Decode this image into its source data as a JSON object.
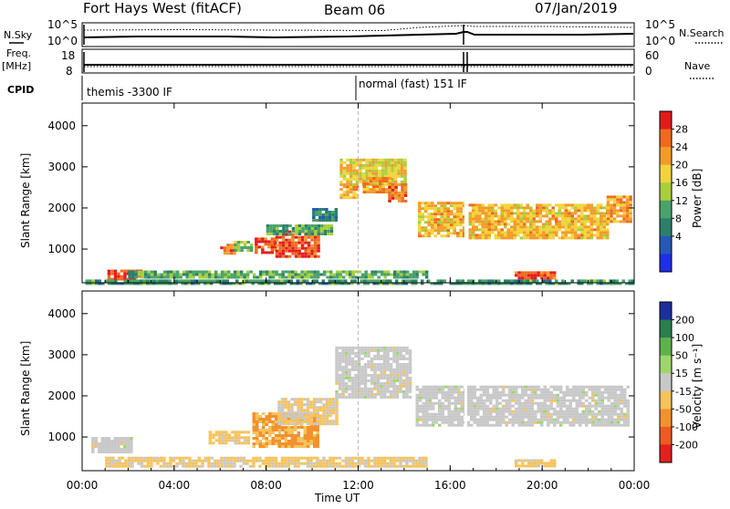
{
  "header": {
    "station": "Fort Hays West (fitACF)",
    "beam": "Beam 06",
    "date": "07/Jan/2019"
  },
  "left_labels": {
    "nsky": "N.Sky",
    "freq": "Freq.",
    "mhz": "[MHz]",
    "cpid": "CPID"
  },
  "right_labels": {
    "nsearch": "N.Search",
    "nave": "Nave"
  },
  "top_panels": {
    "noise_ticks": {
      "left_top": "10^5",
      "left_bottom": "10^0",
      "right_top": "10^5",
      "right_bottom": "10^0"
    },
    "freq_ticks": {
      "top": "18",
      "bottom": "8"
    },
    "nave_ticks": {
      "top": "60",
      "bottom": "0"
    },
    "cpid_labels": [
      "themis -3300 IF",
      "normal (fast) 151 IF"
    ]
  },
  "axes": {
    "xlabel": "Time UT",
    "ylabel": "Slant Range [km]",
    "xticks": [
      "00:00",
      "04:00",
      "08:00",
      "12:00",
      "16:00",
      "20:00",
      "00:00"
    ],
    "yticks": [
      "1000",
      "2000",
      "3000",
      "4000"
    ]
  },
  "colorbars": {
    "power": {
      "label": "Power [dB]",
      "ticks": [
        "4",
        "8",
        "12",
        "16",
        "20",
        "24",
        "28"
      ],
      "colors": [
        "#1f2ee8",
        "#2459b8",
        "#2c7f6a",
        "#48a36a",
        "#a7cf3d",
        "#f2d43a",
        "#f39b2a",
        "#ef6a1f",
        "#e31a1c"
      ]
    },
    "velocity": {
      "label": "Velocity [m s⁻¹]",
      "ticks": [
        "200",
        "100",
        "50",
        "15",
        "-15",
        "-50",
        "-100",
        "-200"
      ],
      "colors": [
        "#1d2f9c",
        "#2a7f4f",
        "#5fb24a",
        "#9fd66b",
        "#c8c8c8",
        "#f6c35c",
        "#f2912e",
        "#ee5a23",
        "#e3201c"
      ]
    }
  },
  "chart_data": {
    "type": "heatmap",
    "title": "Fort Hays West (fitACF)",
    "xlabel": "Time UT",
    "ylabel": "Slant Range [km]",
    "xlim": [
      0,
      24
    ],
    "ylim": [
      180,
      4550
    ],
    "panels": [
      {
        "name": "Power [dB]",
        "zlim": [
          0,
          30
        ],
        "regions": [
          {
            "t0": 6.0,
            "t1": 6.6,
            "r0": 930,
            "r1": 1130,
            "value": 24
          },
          {
            "t0": 6.6,
            "t1": 7.4,
            "r0": 1000,
            "r1": 1200,
            "value": 14
          },
          {
            "t0": 7.5,
            "t1": 8.4,
            "r0": 900,
            "r1": 1280,
            "value": 26
          },
          {
            "t0": 8.4,
            "t1": 10.3,
            "r0": 850,
            "r1": 1450,
            "value": 26
          },
          {
            "t0": 8.0,
            "t1": 10.8,
            "r0": 1350,
            "r1": 1600,
            "value": 12
          },
          {
            "t0": 10.0,
            "t1": 11.0,
            "r0": 1700,
            "r1": 2000,
            "value": 8
          },
          {
            "t0": 11.2,
            "t1": 12.0,
            "r0": 2250,
            "r1": 2550,
            "value": 22
          },
          {
            "t0": 11.2,
            "t1": 14.0,
            "r0": 2550,
            "r1": 3200,
            "value": 18
          },
          {
            "t0": 12.2,
            "t1": 13.4,
            "r0": 2400,
            "r1": 2750,
            "value": 22
          },
          {
            "t0": 13.3,
            "t1": 14.1,
            "r0": 2200,
            "r1": 2600,
            "value": 24
          },
          {
            "t0": 14.6,
            "t1": 16.6,
            "r0": 1350,
            "r1": 2150,
            "value": 20
          },
          {
            "t0": 16.8,
            "t1": 22.8,
            "r0": 1300,
            "r1": 2100,
            "value": 20
          },
          {
            "t0": 22.8,
            "t1": 23.8,
            "r0": 1700,
            "r1": 2300,
            "value": 22
          },
          {
            "t0": 1.1,
            "t1": 2.6,
            "r0": 280,
            "r1": 500,
            "value": 28
          },
          {
            "t0": 2.0,
            "t1": 15.0,
            "r0": 300,
            "r1": 480,
            "value": 12
          },
          {
            "t0": 18.8,
            "t1": 20.6,
            "r0": 300,
            "r1": 460,
            "value": 26
          },
          {
            "t0": 0.0,
            "t1": 24.0,
            "r0": 190,
            "r1": 260,
            "value": 10
          }
        ]
      },
      {
        "name": "Velocity [m s⁻¹]",
        "zlim": [
          -250,
          250
        ],
        "regions": [
          {
            "t0": 5.5,
            "t1": 7.2,
            "r0": 850,
            "r1": 1150,
            "value": -50
          },
          {
            "t0": 7.4,
            "t1": 10.3,
            "r0": 800,
            "r1": 1600,
            "value": -90
          },
          {
            "t0": 8.5,
            "t1": 11.0,
            "r0": 1350,
            "r1": 1950,
            "value": -30
          },
          {
            "t0": 0.4,
            "t1": 2.2,
            "r0": 650,
            "r1": 1000,
            "value": 0
          },
          {
            "t0": 11.0,
            "t1": 14.2,
            "r0": 2000,
            "r1": 3200,
            "value": 0
          },
          {
            "t0": 14.5,
            "t1": 23.8,
            "r0": 1300,
            "r1": 2250,
            "value": 0
          },
          {
            "t0": 1.0,
            "t1": 15.0,
            "r0": 300,
            "r1": 520,
            "value": -40
          },
          {
            "t0": 18.8,
            "t1": 20.6,
            "r0": 300,
            "r1": 460,
            "value": -45
          }
        ]
      }
    ]
  }
}
